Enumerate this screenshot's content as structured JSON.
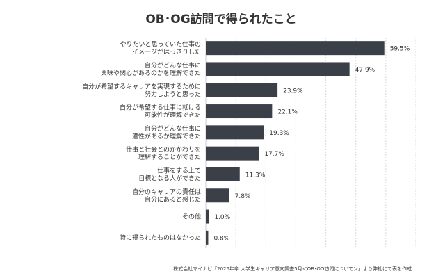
{
  "chart_data": {
    "type": "bar",
    "orientation": "horizontal",
    "title": "OB･OG訪問で得られたこと",
    "categories": [
      [
        "やりたいと思っていた仕事の",
        "イメージがはっきりした"
      ],
      [
        "自分がどんな仕事に",
        "興味や関心があるのかを理解できた"
      ],
      [
        "自分が希望するキャリアを実現するために",
        "努力しようと思った"
      ],
      [
        "自分が希望する仕事に就ける",
        "可能性が理解できた"
      ],
      [
        "自分がどんな仕事に",
        "適性があるか理解できた"
      ],
      [
        "仕事と社会とのかかわりを",
        "理解することができた"
      ],
      [
        "仕事をする上で",
        "目標となる人ができた"
      ],
      [
        "自分のキャリアの責任は",
        "自分にあると感じた"
      ],
      [
        "その他"
      ],
      [
        "特に得られたものはなかった"
      ]
    ],
    "values": [
      59.5,
      47.9,
      23.9,
      22.1,
      19.3,
      17.7,
      11.3,
      7.8,
      1.0,
      0.8
    ],
    "value_labels": [
      "59.5%",
      "47.9%",
      "23.9%",
      "22.1%",
      "19.3%",
      "17.7%",
      "11.3%",
      "7.8%",
      "1.0%",
      "0.8%"
    ],
    "xlim": [
      0,
      70
    ],
    "grid": "vertical-dashed",
    "bar_color": "#3b3f48",
    "source_note": "株式会社マイナビ「2026年卒 大学生キャリア意向調査5月＜OB･OG訪問について＞」より弊社にて表を作成"
  }
}
